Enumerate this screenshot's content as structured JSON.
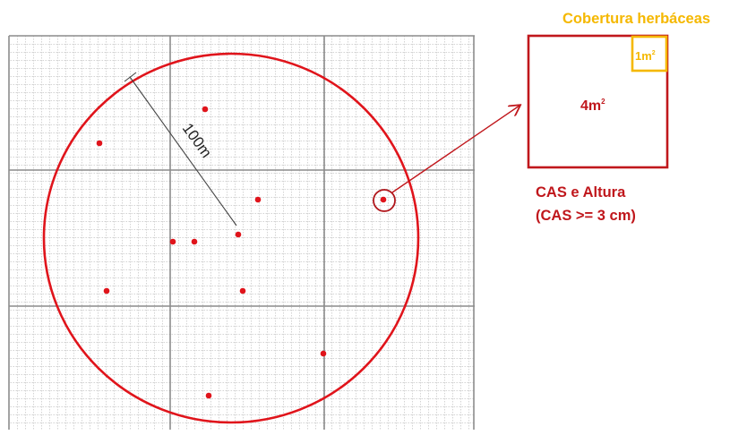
{
  "diagram": {
    "radius_label": "100m",
    "quadrat_area_label": "4m",
    "quadrat_area_sup": "2",
    "subquadrat_area_label": "1m",
    "subquadrat_area_sup": "2",
    "herb_cover_label": "Cobertura herbáceas",
    "measure_label_line1": "CAS e Altura",
    "measure_label_line2": "(CAS >= 3 cm)",
    "colors": {
      "circle": "#e0141b",
      "points": "#e0141b",
      "quadrat": "#c0171c",
      "subquadrat": "#f5b800",
      "arrow": "#c0171c",
      "grid_fine": "#a8a8a8",
      "grid_major": "#8c8c8c",
      "radius_line": "#444444"
    }
  }
}
